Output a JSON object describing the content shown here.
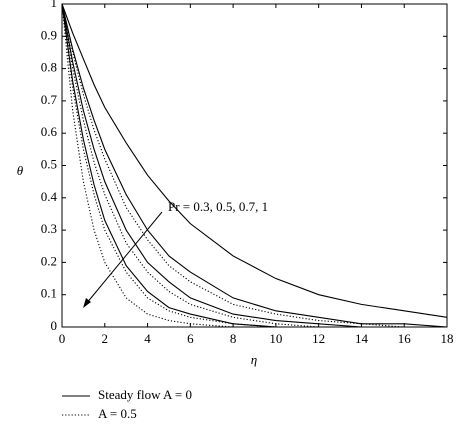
{
  "chart_data": {
    "type": "line",
    "x_label": "η",
    "y_label": "θ",
    "x": [
      0,
      0.5,
      1,
      1.5,
      2,
      3,
      4,
      5,
      6,
      8,
      10,
      12,
      14,
      16,
      18
    ],
    "series": [
      {
        "color": "#000000",
        "dash": "solid",
        "values": [
          1,
          0.91,
          0.83,
          0.75,
          0.68,
          0.57,
          0.47,
          0.39,
          0.32,
          0.22,
          0.15,
          0.1,
          0.07,
          0.05,
          0.03
        ]
      },
      {
        "color": "#000000",
        "dash": "solid",
        "values": [
          1,
          0.86,
          0.74,
          0.64,
          0.55,
          0.41,
          0.3,
          0.22,
          0.17,
          0.09,
          0.05,
          0.03,
          0.01,
          0.01,
          0
        ]
      },
      {
        "color": "#000000",
        "dash": "solid",
        "values": [
          1,
          0.82,
          0.67,
          0.55,
          0.45,
          0.3,
          0.2,
          0.14,
          0.09,
          0.04,
          0.02,
          0.01,
          0,
          0,
          0
        ]
      },
      {
        "color": "#000000",
        "dash": "solid",
        "values": [
          1,
          0.76,
          0.58,
          0.44,
          0.33,
          0.19,
          0.11,
          0.06,
          0.04,
          0.01,
          0,
          0,
          0,
          0,
          0
        ]
      },
      {
        "color": "#000000",
        "dash": "dotted",
        "values": [
          1,
          0.85,
          0.72,
          0.61,
          0.52,
          0.37,
          0.27,
          0.19,
          0.14,
          0.07,
          0.04,
          0.02,
          0.01,
          0,
          0
        ]
      },
      {
        "color": "#000000",
        "dash": "dotted",
        "values": [
          1,
          0.8,
          0.64,
          0.51,
          0.41,
          0.26,
          0.17,
          0.11,
          0.07,
          0.03,
          0.01,
          0,
          0,
          0,
          0
        ]
      },
      {
        "color": "#000000",
        "dash": "dotted",
        "values": [
          1,
          0.74,
          0.55,
          0.41,
          0.3,
          0.17,
          0.09,
          0.05,
          0.03,
          0.01,
          0,
          0,
          0,
          0,
          0
        ]
      },
      {
        "color": "#000000",
        "dash": "dotted",
        "values": [
          1,
          0.67,
          0.45,
          0.3,
          0.2,
          0.09,
          0.04,
          0.02,
          0.01,
          0,
          0,
          0,
          0,
          0,
          0
        ]
      }
    ],
    "legend": [
      {
        "label": "Steady flow A = 0",
        "dash": "solid"
      },
      {
        "label": "A = 0.5",
        "dash": "dotted"
      }
    ],
    "annotation": "Pr = 0.3, 0.5, 0.7, 1",
    "xlim": [
      0,
      18
    ],
    "xticks": [
      0,
      2,
      4,
      6,
      8,
      10,
      12,
      14,
      16,
      18
    ],
    "ylim": [
      0,
      1
    ],
    "yticks": [
      0,
      0.1,
      0.2,
      0.3,
      0.4,
      0.5,
      0.6,
      0.7,
      0.8,
      0.9,
      1
    ]
  }
}
